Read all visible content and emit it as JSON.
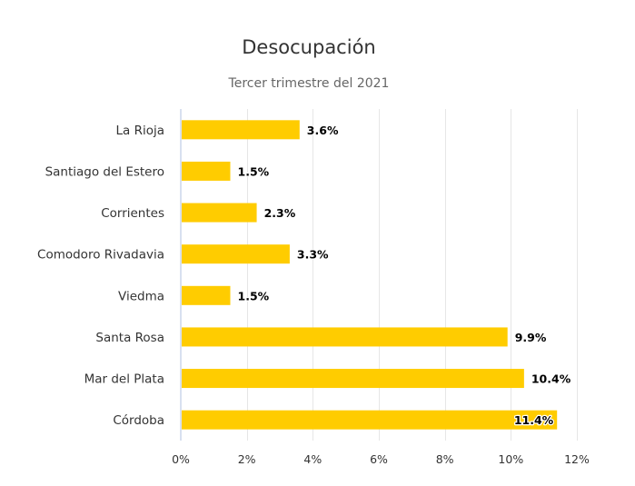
{
  "chart_data": {
    "type": "bar",
    "orientation": "horizontal",
    "title": "Desocupación",
    "subtitle": "Tercer trimestre del 2021",
    "xlabel": "",
    "ylabel": "",
    "categories": [
      "La Rioja",
      "Santiago del Estero",
      "Corrientes",
      "Comodoro Rivadavia",
      "Viedma",
      "Santa Rosa",
      "Mar del Plata",
      "Córdoba"
    ],
    "values": [
      3.6,
      1.5,
      2.3,
      3.3,
      1.5,
      9.9,
      10.4,
      11.4
    ],
    "data_labels": [
      "3.6%",
      "1.5%",
      "2.3%",
      "3.3%",
      "1.5%",
      "9.9%",
      "10.4%",
      "11.4%"
    ],
    "value_axis": {
      "range": [
        0,
        12
      ],
      "ticks": [
        0,
        2,
        4,
        6,
        8,
        10,
        12
      ],
      "tick_labels": [
        "0%",
        "2%",
        "4%",
        "6%",
        "8%",
        "10%",
        "12%"
      ],
      "grid": true
    },
    "legend": "none",
    "colors": {
      "bar": "#ffcc00",
      "grid": "#e6e6e6",
      "axis": "#ccd6eb"
    }
  }
}
